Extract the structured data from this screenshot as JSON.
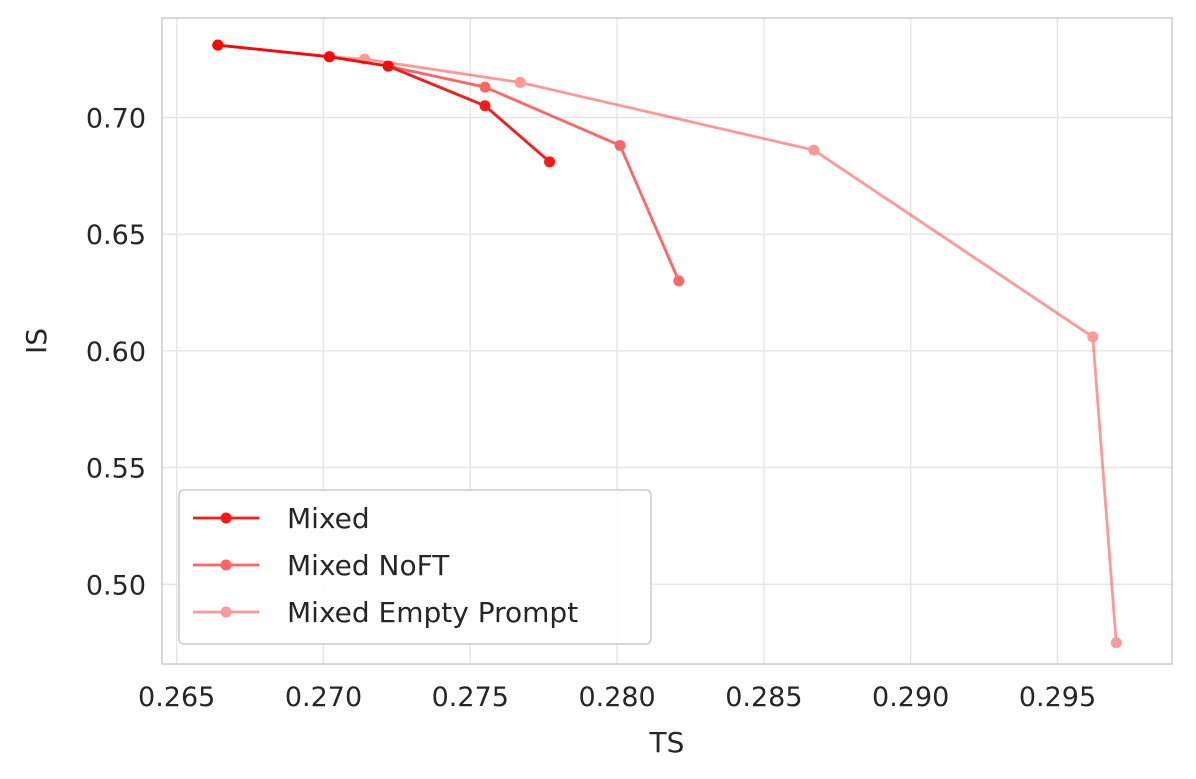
{
  "chart_data": {
    "type": "line",
    "title": "",
    "xlabel": "TS",
    "ylabel": "IS",
    "xlim": [
      0.2645,
      0.2989
    ],
    "ylim": [
      0.4659,
      0.7426
    ],
    "x_ticks": [
      0.265,
      0.27,
      0.275,
      0.28,
      0.285,
      0.29,
      0.295
    ],
    "x_tick_labels": [
      "0.265",
      "0.270",
      "0.275",
      "0.280",
      "0.285",
      "0.290",
      "0.295"
    ],
    "y_ticks": [
      0.5,
      0.55,
      0.6,
      0.65,
      0.7
    ],
    "y_tick_labels": [
      "0.50",
      "0.55",
      "0.60",
      "0.65",
      "0.70"
    ],
    "grid": true,
    "legend_position": "lower-left",
    "series": [
      {
        "name": "Mixed Empty Prompt",
        "color": "#ff0000",
        "opacity": 0.4,
        "marker": "circle",
        "x": [
          0.2664,
          0.2702,
          0.2714,
          0.2767,
          0.2867,
          0.2962,
          0.297
        ],
        "y": [
          0.731,
          0.726,
          0.725,
          0.715,
          0.686,
          0.606,
          0.475
        ]
      },
      {
        "name": "Mixed NoFT",
        "color": "#ff0000",
        "opacity": 0.6,
        "marker": "circle",
        "x": [
          0.2664,
          0.2702,
          0.2722,
          0.2755,
          0.2801,
          0.2821
        ],
        "y": [
          0.731,
          0.726,
          0.722,
          0.713,
          0.688,
          0.63
        ]
      },
      {
        "name": "Mixed",
        "color": "#ff0000",
        "opacity": 0.9,
        "marker": "circle",
        "x": [
          0.2664,
          0.2702,
          0.2722,
          0.2755,
          0.2777
        ],
        "y": [
          0.731,
          0.726,
          0.722,
          0.705,
          0.681
        ]
      }
    ],
    "legend": [
      "Mixed",
      "Mixed NoFT",
      "Mixed Empty Prompt"
    ]
  }
}
